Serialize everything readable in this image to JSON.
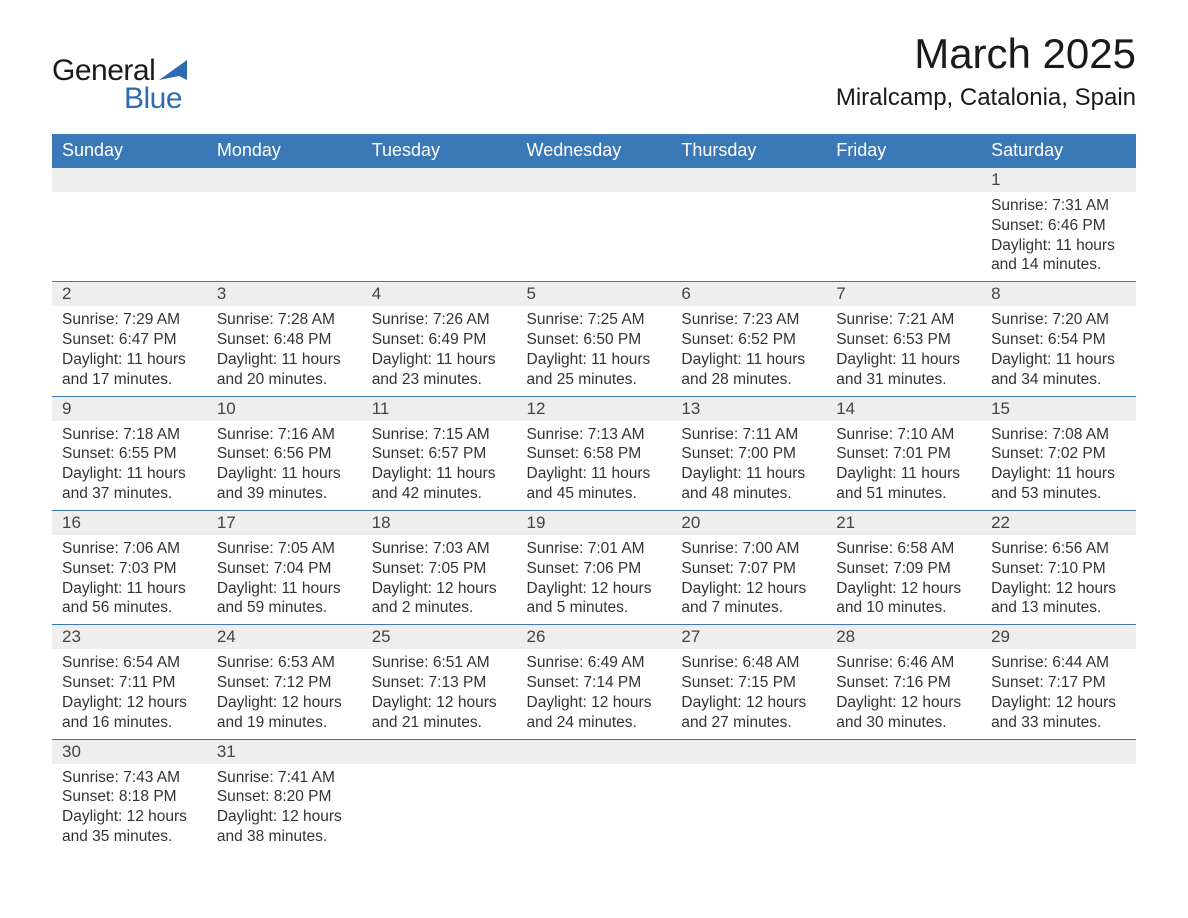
{
  "brand": {
    "word1": "General",
    "word2": "Blue",
    "text_color": "#1a1a1a",
    "accent_color": "#2e6bb0",
    "sail_color": "#2e6bb0"
  },
  "title": "March 2025",
  "location": "Miralcamp, Catalonia, Spain",
  "colors": {
    "header_bg": "#3b78b8",
    "header_text": "#ffffff",
    "daynum_bg": "#eeeeee",
    "row_divider": "#3b78b8",
    "body_text": "#333333",
    "page_bg": "#ffffff"
  },
  "day_headers": [
    "Sunday",
    "Monday",
    "Tuesday",
    "Wednesday",
    "Thursday",
    "Friday",
    "Saturday"
  ],
  "weeks": [
    {
      "days": [
        null,
        null,
        null,
        null,
        null,
        null,
        {
          "n": "1",
          "sunrise": "Sunrise: 7:31 AM",
          "sunset": "Sunset: 6:46 PM",
          "dl1": "Daylight: 11 hours",
          "dl2": "and 14 minutes."
        }
      ]
    },
    {
      "days": [
        {
          "n": "2",
          "sunrise": "Sunrise: 7:29 AM",
          "sunset": "Sunset: 6:47 PM",
          "dl1": "Daylight: 11 hours",
          "dl2": "and 17 minutes."
        },
        {
          "n": "3",
          "sunrise": "Sunrise: 7:28 AM",
          "sunset": "Sunset: 6:48 PM",
          "dl1": "Daylight: 11 hours",
          "dl2": "and 20 minutes."
        },
        {
          "n": "4",
          "sunrise": "Sunrise: 7:26 AM",
          "sunset": "Sunset: 6:49 PM",
          "dl1": "Daylight: 11 hours",
          "dl2": "and 23 minutes."
        },
        {
          "n": "5",
          "sunrise": "Sunrise: 7:25 AM",
          "sunset": "Sunset: 6:50 PM",
          "dl1": "Daylight: 11 hours",
          "dl2": "and 25 minutes."
        },
        {
          "n": "6",
          "sunrise": "Sunrise: 7:23 AM",
          "sunset": "Sunset: 6:52 PM",
          "dl1": "Daylight: 11 hours",
          "dl2": "and 28 minutes."
        },
        {
          "n": "7",
          "sunrise": "Sunrise: 7:21 AM",
          "sunset": "Sunset: 6:53 PM",
          "dl1": "Daylight: 11 hours",
          "dl2": "and 31 minutes."
        },
        {
          "n": "8",
          "sunrise": "Sunrise: 7:20 AM",
          "sunset": "Sunset: 6:54 PM",
          "dl1": "Daylight: 11 hours",
          "dl2": "and 34 minutes."
        }
      ]
    },
    {
      "days": [
        {
          "n": "9",
          "sunrise": "Sunrise: 7:18 AM",
          "sunset": "Sunset: 6:55 PM",
          "dl1": "Daylight: 11 hours",
          "dl2": "and 37 minutes."
        },
        {
          "n": "10",
          "sunrise": "Sunrise: 7:16 AM",
          "sunset": "Sunset: 6:56 PM",
          "dl1": "Daylight: 11 hours",
          "dl2": "and 39 minutes."
        },
        {
          "n": "11",
          "sunrise": "Sunrise: 7:15 AM",
          "sunset": "Sunset: 6:57 PM",
          "dl1": "Daylight: 11 hours",
          "dl2": "and 42 minutes."
        },
        {
          "n": "12",
          "sunrise": "Sunrise: 7:13 AM",
          "sunset": "Sunset: 6:58 PM",
          "dl1": "Daylight: 11 hours",
          "dl2": "and 45 minutes."
        },
        {
          "n": "13",
          "sunrise": "Sunrise: 7:11 AM",
          "sunset": "Sunset: 7:00 PM",
          "dl1": "Daylight: 11 hours",
          "dl2": "and 48 minutes."
        },
        {
          "n": "14",
          "sunrise": "Sunrise: 7:10 AM",
          "sunset": "Sunset: 7:01 PM",
          "dl1": "Daylight: 11 hours",
          "dl2": "and 51 minutes."
        },
        {
          "n": "15",
          "sunrise": "Sunrise: 7:08 AM",
          "sunset": "Sunset: 7:02 PM",
          "dl1": "Daylight: 11 hours",
          "dl2": "and 53 minutes."
        }
      ]
    },
    {
      "days": [
        {
          "n": "16",
          "sunrise": "Sunrise: 7:06 AM",
          "sunset": "Sunset: 7:03 PM",
          "dl1": "Daylight: 11 hours",
          "dl2": "and 56 minutes."
        },
        {
          "n": "17",
          "sunrise": "Sunrise: 7:05 AM",
          "sunset": "Sunset: 7:04 PM",
          "dl1": "Daylight: 11 hours",
          "dl2": "and 59 minutes."
        },
        {
          "n": "18",
          "sunrise": "Sunrise: 7:03 AM",
          "sunset": "Sunset: 7:05 PM",
          "dl1": "Daylight: 12 hours",
          "dl2": "and 2 minutes."
        },
        {
          "n": "19",
          "sunrise": "Sunrise: 7:01 AM",
          "sunset": "Sunset: 7:06 PM",
          "dl1": "Daylight: 12 hours",
          "dl2": "and 5 minutes."
        },
        {
          "n": "20",
          "sunrise": "Sunrise: 7:00 AM",
          "sunset": "Sunset: 7:07 PM",
          "dl1": "Daylight: 12 hours",
          "dl2": "and 7 minutes."
        },
        {
          "n": "21",
          "sunrise": "Sunrise: 6:58 AM",
          "sunset": "Sunset: 7:09 PM",
          "dl1": "Daylight: 12 hours",
          "dl2": "and 10 minutes."
        },
        {
          "n": "22",
          "sunrise": "Sunrise: 6:56 AM",
          "sunset": "Sunset: 7:10 PM",
          "dl1": "Daylight: 12 hours",
          "dl2": "and 13 minutes."
        }
      ]
    },
    {
      "days": [
        {
          "n": "23",
          "sunrise": "Sunrise: 6:54 AM",
          "sunset": "Sunset: 7:11 PM",
          "dl1": "Daylight: 12 hours",
          "dl2": "and 16 minutes."
        },
        {
          "n": "24",
          "sunrise": "Sunrise: 6:53 AM",
          "sunset": "Sunset: 7:12 PM",
          "dl1": "Daylight: 12 hours",
          "dl2": "and 19 minutes."
        },
        {
          "n": "25",
          "sunrise": "Sunrise: 6:51 AM",
          "sunset": "Sunset: 7:13 PM",
          "dl1": "Daylight: 12 hours",
          "dl2": "and 21 minutes."
        },
        {
          "n": "26",
          "sunrise": "Sunrise: 6:49 AM",
          "sunset": "Sunset: 7:14 PM",
          "dl1": "Daylight: 12 hours",
          "dl2": "and 24 minutes."
        },
        {
          "n": "27",
          "sunrise": "Sunrise: 6:48 AM",
          "sunset": "Sunset: 7:15 PM",
          "dl1": "Daylight: 12 hours",
          "dl2": "and 27 minutes."
        },
        {
          "n": "28",
          "sunrise": "Sunrise: 6:46 AM",
          "sunset": "Sunset: 7:16 PM",
          "dl1": "Daylight: 12 hours",
          "dl2": "and 30 minutes."
        },
        {
          "n": "29",
          "sunrise": "Sunrise: 6:44 AM",
          "sunset": "Sunset: 7:17 PM",
          "dl1": "Daylight: 12 hours",
          "dl2": "and 33 minutes."
        }
      ]
    },
    {
      "days": [
        {
          "n": "30",
          "sunrise": "Sunrise: 7:43 AM",
          "sunset": "Sunset: 8:18 PM",
          "dl1": "Daylight: 12 hours",
          "dl2": "and 35 minutes."
        },
        {
          "n": "31",
          "sunrise": "Sunrise: 7:41 AM",
          "sunset": "Sunset: 8:20 PM",
          "dl1": "Daylight: 12 hours",
          "dl2": "and 38 minutes."
        },
        null,
        null,
        null,
        null,
        null
      ]
    }
  ]
}
